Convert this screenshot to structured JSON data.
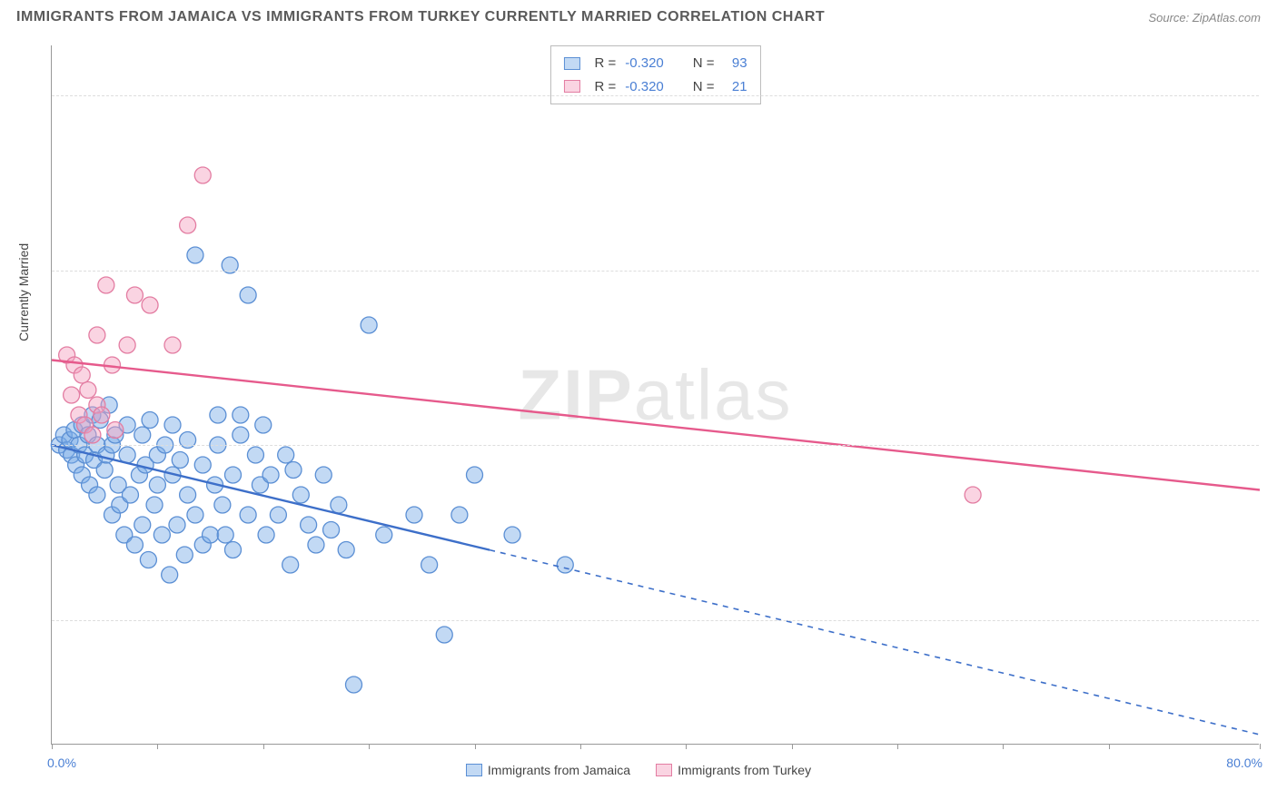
{
  "header": {
    "title": "IMMIGRANTS FROM JAMAICA VS IMMIGRANTS FROM TURKEY CURRENTLY MARRIED CORRELATION CHART",
    "source_label": "Source: ",
    "source_value": "ZipAtlas.com"
  },
  "chart": {
    "type": "scatter",
    "y_axis_title": "Currently Married",
    "background_color": "#ffffff",
    "grid_color": "#dddddd",
    "axis_color": "#999999",
    "label_color": "#4a7fd4",
    "xlim": [
      0,
      80
    ],
    "ylim": [
      15,
      85
    ],
    "y_ticks": [
      80.0,
      62.5,
      45.0,
      27.5
    ],
    "x_ticks": [
      0,
      7,
      14,
      21,
      28,
      35,
      42,
      49,
      56,
      63,
      70,
      80
    ],
    "x_tick_labels": {
      "min": "0.0%",
      "max": "80.0%"
    },
    "watermark": {
      "bold": "ZIP",
      "rest": "atlas"
    },
    "series": [
      {
        "name": "Immigrants from Jamaica",
        "fill": "rgba(120,170,230,0.45)",
        "stroke": "#5b8fd4",
        "marker_radius": 9,
        "trend": {
          "x1": 0,
          "y1": 45.0,
          "x2": 80,
          "y2": 16.0,
          "solid_until_x": 29,
          "stroke": "#3d6fc9",
          "width": 2.4
        },
        "R": "-0.320",
        "N": "93",
        "points": [
          [
            0.5,
            45
          ],
          [
            0.8,
            46
          ],
          [
            1.0,
            44.5
          ],
          [
            1.2,
            45.5
          ],
          [
            1.3,
            44
          ],
          [
            1.5,
            46.5
          ],
          [
            1.6,
            43
          ],
          [
            1.8,
            45
          ],
          [
            2.0,
            42
          ],
          [
            2.0,
            47
          ],
          [
            2.2,
            44
          ],
          [
            2.4,
            46
          ],
          [
            2.5,
            41
          ],
          [
            2.7,
            48
          ],
          [
            2.8,
            43.5
          ],
          [
            3.0,
            45
          ],
          [
            3.0,
            40
          ],
          [
            3.2,
            47.5
          ],
          [
            3.5,
            42.5
          ],
          [
            3.6,
            44
          ],
          [
            3.8,
            49
          ],
          [
            4.0,
            38
          ],
          [
            4.0,
            45
          ],
          [
            4.2,
            46
          ],
          [
            4.4,
            41
          ],
          [
            4.5,
            39
          ],
          [
            4.8,
            36
          ],
          [
            5.0,
            44
          ],
          [
            5.0,
            47
          ],
          [
            5.2,
            40
          ],
          [
            5.5,
            35
          ],
          [
            5.8,
            42
          ],
          [
            6.0,
            46
          ],
          [
            6.0,
            37
          ],
          [
            6.2,
            43
          ],
          [
            6.4,
            33.5
          ],
          [
            6.5,
            47.5
          ],
          [
            6.8,
            39
          ],
          [
            7.0,
            44
          ],
          [
            7.0,
            41
          ],
          [
            7.3,
            36
          ],
          [
            7.5,
            45
          ],
          [
            7.8,
            32
          ],
          [
            8.0,
            42
          ],
          [
            8.0,
            47
          ],
          [
            8.3,
            37
          ],
          [
            8.5,
            43.5
          ],
          [
            8.8,
            34
          ],
          [
            9.0,
            45.5
          ],
          [
            9.0,
            40
          ],
          [
            9.5,
            38
          ],
          [
            9.5,
            64
          ],
          [
            10.0,
            35
          ],
          [
            10.0,
            43
          ],
          [
            10.5,
            36
          ],
          [
            10.8,
            41
          ],
          [
            11.0,
            48
          ],
          [
            11.0,
            45
          ],
          [
            11.3,
            39
          ],
          [
            11.5,
            36
          ],
          [
            11.8,
            63
          ],
          [
            12.0,
            42
          ],
          [
            12.0,
            34.5
          ],
          [
            12.5,
            46
          ],
          [
            12.5,
            48
          ],
          [
            13.0,
            38
          ],
          [
            13.0,
            60
          ],
          [
            13.5,
            44
          ],
          [
            13.8,
            41
          ],
          [
            14.0,
            47
          ],
          [
            14.2,
            36
          ],
          [
            14.5,
            42
          ],
          [
            15.0,
            38
          ],
          [
            15.5,
            44
          ],
          [
            15.8,
            33
          ],
          [
            16.0,
            42.5
          ],
          [
            16.5,
            40
          ],
          [
            17.0,
            37
          ],
          [
            17.5,
            35
          ],
          [
            18.0,
            42
          ],
          [
            18.5,
            36.5
          ],
          [
            19.0,
            39
          ],
          [
            19.5,
            34.5
          ],
          [
            20.0,
            21
          ],
          [
            21.0,
            57
          ],
          [
            22.0,
            36
          ],
          [
            24.0,
            38
          ],
          [
            25.0,
            33
          ],
          [
            26.0,
            26
          ],
          [
            27.0,
            38
          ],
          [
            28.0,
            42
          ],
          [
            30.5,
            36
          ],
          [
            34.0,
            33
          ]
        ]
      },
      {
        "name": "Immigrants from Turkey",
        "fill": "rgba(245,160,190,0.45)",
        "stroke": "#e37da2",
        "marker_radius": 9,
        "trend": {
          "x1": 0,
          "y1": 53.5,
          "x2": 80,
          "y2": 40.5,
          "solid_until_x": 80,
          "stroke": "#e65a8c",
          "width": 2.4
        },
        "R": "-0.320",
        "N": "21",
        "points": [
          [
            1.0,
            54
          ],
          [
            1.3,
            50
          ],
          [
            1.5,
            53
          ],
          [
            1.8,
            48
          ],
          [
            2.0,
            52
          ],
          [
            2.2,
            47
          ],
          [
            2.4,
            50.5
          ],
          [
            2.7,
            46
          ],
          [
            3.0,
            56
          ],
          [
            3.0,
            49
          ],
          [
            3.3,
            48
          ],
          [
            3.6,
            61
          ],
          [
            4.0,
            53
          ],
          [
            4.2,
            46.5
          ],
          [
            5.0,
            55
          ],
          [
            5.5,
            60
          ],
          [
            6.5,
            59
          ],
          [
            8.0,
            55
          ],
          [
            9.0,
            67
          ],
          [
            10.0,
            72
          ],
          [
            61.0,
            40
          ]
        ]
      }
    ],
    "top_legend": {
      "R_label": "R =",
      "N_label": "N ="
    }
  }
}
